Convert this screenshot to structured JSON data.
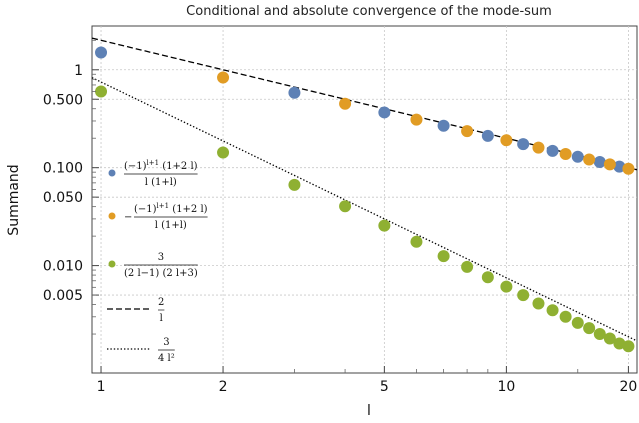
{
  "chart_data": {
    "type": "scatter",
    "title": "Conditional and absolute convergence of the mode-sum",
    "xlabel": "l",
    "ylabel": "Summand",
    "xscale": "log",
    "yscale": "log",
    "xlim": [
      0.95,
      21
    ],
    "ylim": [
      0.0008,
      2.8
    ],
    "grid": true,
    "legend_position": "left",
    "x_ticks": [
      {
        "value": 1,
        "label": "1"
      },
      {
        "value": 2,
        "label": "2"
      },
      {
        "value": 5,
        "label": "5"
      },
      {
        "value": 10,
        "label": "10"
      },
      {
        "value": 20,
        "label": "20"
      }
    ],
    "y_ticks": [
      {
        "value": 1,
        "label": "1"
      },
      {
        "value": 0.5,
        "label": "0.500"
      },
      {
        "value": 0.1,
        "label": "0.100"
      },
      {
        "value": 0.05,
        "label": "0.050"
      },
      {
        "value": 0.01,
        "label": "0.010"
      },
      {
        "value": 0.005,
        "label": "0.005"
      }
    ],
    "series": [
      {
        "legend_num": "(−1)",
        "legend_sup": "l+1",
        "legend_num_rest": " (1+2 l)",
        "legend_den": "l (1+l)",
        "legend_sign": "",
        "color": "#5e81b5",
        "kind": "points",
        "x": [
          1,
          3,
          5,
          7,
          9,
          11,
          13,
          15,
          17,
          19
        ],
        "y": [
          1.5,
          0.5833,
          0.3667,
          0.2679,
          0.2111,
          0.1742,
          0.1484,
          0.1292,
          0.1144,
          0.1026
        ]
      },
      {
        "legend_num": "(−1)",
        "legend_sup": "l+1",
        "legend_num_rest": " (1+2 l)",
        "legend_den": "l (1+l)",
        "legend_sign": "−",
        "color": "#e19c24",
        "kind": "points",
        "x": [
          2,
          4,
          6,
          8,
          10,
          12,
          14,
          16,
          18,
          20
        ],
        "y": [
          0.8333,
          0.45,
          0.3095,
          0.2361,
          0.1909,
          0.1603,
          0.1381,
          0.1213,
          0.1082,
          0.0976
        ]
      },
      {
        "legend_num": "3",
        "legend_sup": "",
        "legend_num_rest": "",
        "legend_den": "(2 l−1) (2 l+3)",
        "legend_sign": "",
        "color": "#8fb032",
        "kind": "points",
        "x": [
          1,
          2,
          3,
          4,
          5,
          6,
          7,
          8,
          9,
          10,
          11,
          12,
          13,
          14,
          15,
          16,
          17,
          18,
          19,
          20
        ],
        "y": [
          0.6,
          0.1429,
          0.0667,
          0.0404,
          0.0256,
          0.0175,
          0.0125,
          0.0097,
          0.0076,
          0.0061,
          0.005,
          0.0041,
          0.0035,
          0.003,
          0.0026,
          0.0023,
          0.002,
          0.0018,
          0.0016,
          0.0015
        ]
      },
      {
        "legend_num": "2",
        "legend_sup": "",
        "legend_num_rest": "",
        "legend_den": "l",
        "legend_sign": "",
        "color": "#000000",
        "kind": "dashed",
        "formula": "2/l"
      },
      {
        "legend_num": "3",
        "legend_sup": "",
        "legend_num_rest": "",
        "legend_den": "4 l²",
        "legend_sign": "",
        "color": "#000000",
        "kind": "dotted",
        "formula": "3/(4l^2)"
      }
    ]
  }
}
